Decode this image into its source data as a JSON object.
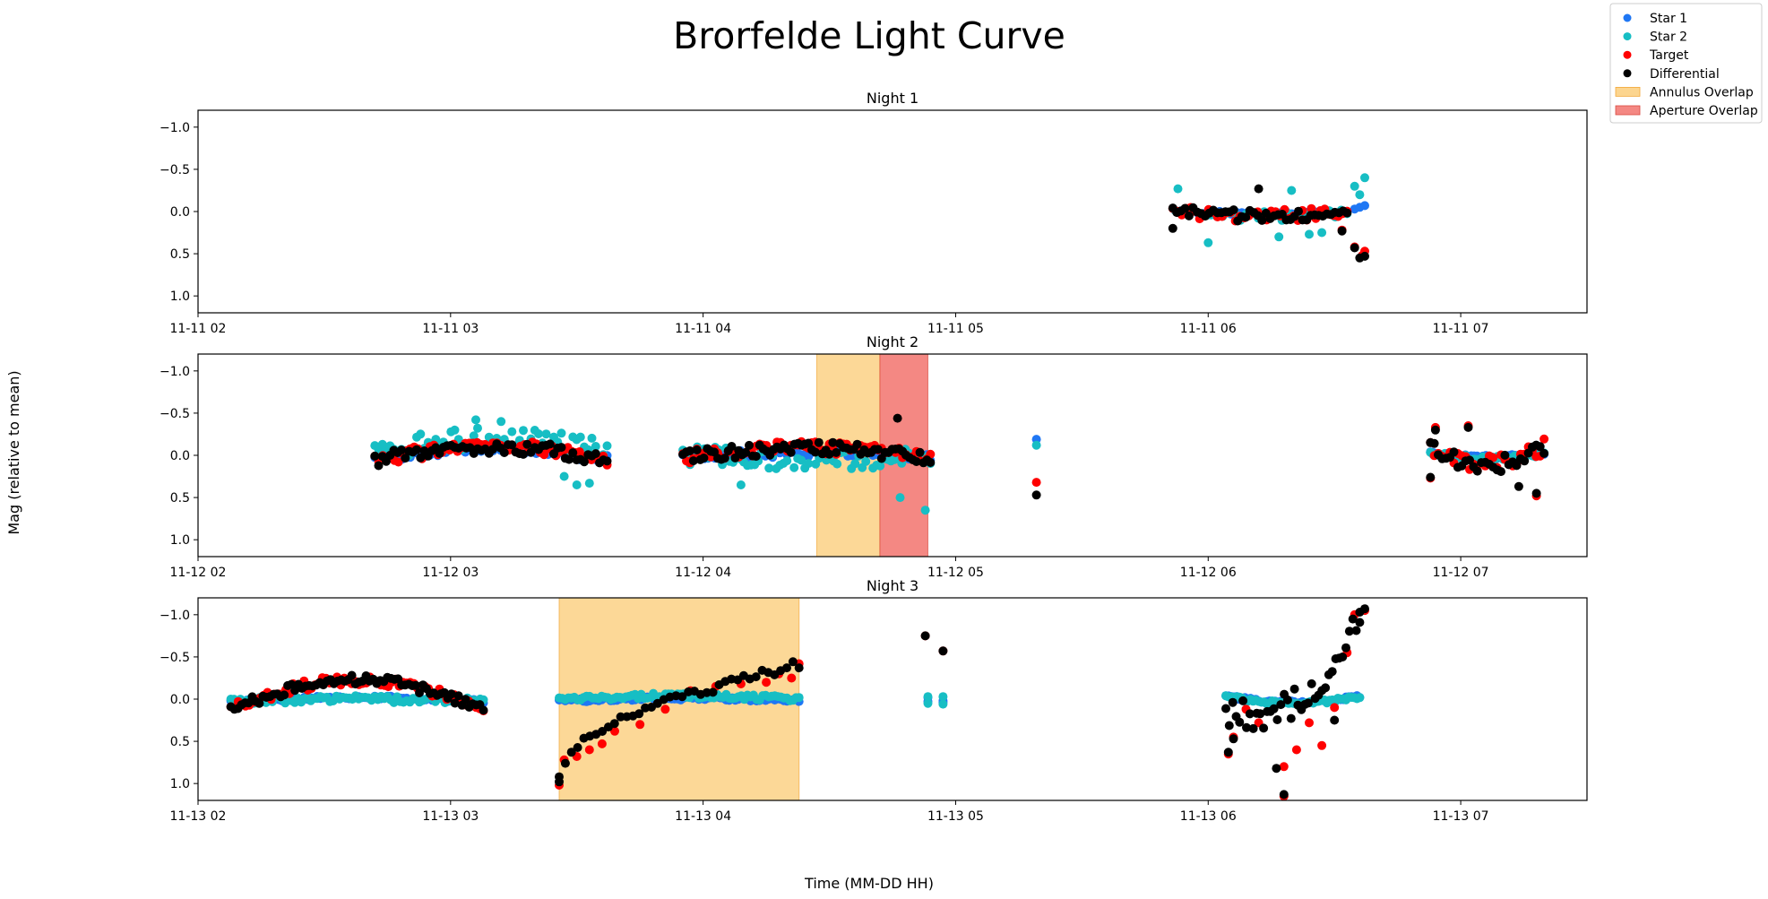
{
  "figure": {
    "title": "Brorfelde Light Curve",
    "xlabel": "Time (MM-DD HH)",
    "ylabel": "Mag (relative to mean)"
  },
  "colors": {
    "star1": "#1f77f4",
    "star2": "#17bec4",
    "target": "#ff0000",
    "differential": "#000000",
    "annulus": "#fbc360",
    "aperture": "#f0605a"
  },
  "legend": {
    "placement": "top-right",
    "entries": [
      {
        "label": "Star 1",
        "kind": "marker",
        "color_key": "star1"
      },
      {
        "label": "Star 2",
        "kind": "marker",
        "color_key": "star2"
      },
      {
        "label": "Target",
        "kind": "marker",
        "color_key": "target"
      },
      {
        "label": "Differential",
        "kind": "marker",
        "color_key": "differential"
      },
      {
        "label": "Annulus Overlap",
        "kind": "patch",
        "color_key": "annulus"
      },
      {
        "label": "Aperture Overlap",
        "kind": "patch",
        "color_key": "aperture"
      }
    ]
  },
  "chart_data": [
    {
      "type": "scatter",
      "title": "Night 1",
      "date": "11-11",
      "xlim_hours": [
        2.0,
        7.5
      ],
      "ylim": [
        1.2,
        -1.2
      ],
      "y_inverted": true,
      "yticks": [
        1.0,
        0.5,
        0.0,
        -0.5,
        -1.0
      ],
      "ytick_labels": [
        "1.0",
        "0.5",
        "0.0",
        "−0.5",
        "−1.0"
      ],
      "xticks": [
        2,
        3,
        4,
        5,
        6,
        7
      ],
      "xtick_labels": [
        "11-11 02",
        "11-11 03",
        "11-11 04",
        "11-11 05",
        "11-11 06",
        "11-11 07"
      ],
      "annulus_overlap": [],
      "aperture_overlap": [],
      "series": [
        {
          "name": "Star 1",
          "color_key": "star1",
          "segments": [
            {
              "t0": 5.87,
              "t1": 6.55,
              "n": 32,
              "base": 0.0,
              "amp": 0.02,
              "noise": 0.02,
              "seed": 11
            }
          ],
          "points": [
            [
              6.58,
              -0.03
            ],
            [
              6.6,
              -0.05
            ],
            [
              6.62,
              -0.07
            ]
          ]
        },
        {
          "name": "Star 2",
          "color_key": "star2",
          "segments": [
            {
              "t0": 5.87,
              "t1": 6.55,
              "n": 30,
              "base": 0.02,
              "amp": 0.03,
              "noise": 0.06,
              "seed": 12
            }
          ],
          "points": [
            [
              5.88,
              -0.27
            ],
            [
              6.0,
              0.37
            ],
            [
              6.28,
              0.3
            ],
            [
              6.33,
              -0.25
            ],
            [
              6.4,
              0.27
            ],
            [
              6.45,
              0.25
            ],
            [
              6.58,
              -0.3
            ],
            [
              6.6,
              -0.2
            ],
            [
              6.62,
              -0.4
            ]
          ]
        },
        {
          "name": "Target",
          "color_key": "target",
          "segments": [
            {
              "t0": 5.86,
              "t1": 6.55,
              "n": 40,
              "base": 0.0,
              "amp": 0.05,
              "noise": 0.07,
              "seed": 13
            }
          ],
          "points": [
            [
              6.53,
              0.22
            ],
            [
              6.58,
              0.42
            ],
            [
              6.61,
              0.52
            ],
            [
              6.62,
              0.47
            ]
          ]
        },
        {
          "name": "Differential",
          "color_key": "differential",
          "segments": [
            {
              "t0": 5.86,
              "t1": 6.55,
              "n": 44,
              "base": 0.0,
              "amp": 0.06,
              "noise": 0.08,
              "seed": 14
            }
          ],
          "points": [
            [
              5.86,
              0.2
            ],
            [
              6.2,
              -0.27
            ],
            [
              6.53,
              0.23
            ],
            [
              6.58,
              0.43
            ],
            [
              6.6,
              0.55
            ],
            [
              6.62,
              0.53
            ]
          ]
        }
      ]
    },
    {
      "type": "scatter",
      "title": "Night 2",
      "date": "11-12",
      "xlim_hours": [
        2.0,
        7.5
      ],
      "ylim": [
        1.2,
        -1.2
      ],
      "y_inverted": true,
      "yticks": [
        1.0,
        0.5,
        0.0,
        -0.5,
        -1.0
      ],
      "ytick_labels": [
        "1.0",
        "0.5",
        "0.0",
        "−0.5",
        "−1.0"
      ],
      "xticks": [
        2,
        3,
        4,
        5,
        6,
        7
      ],
      "xtick_labels": [
        "11-12 02",
        "11-12 03",
        "11-12 04",
        "11-12 05",
        "11-12 06",
        "11-12 07"
      ],
      "annulus_overlap": [
        [
          4.45,
          4.7
        ]
      ],
      "aperture_overlap": [
        [
          4.7,
          4.89
        ]
      ],
      "series": [
        {
          "name": "Star 1",
          "color_key": "star1",
          "segments": [
            {
              "t0": 2.7,
              "t1": 3.62,
              "n": 60,
              "base": 0.05,
              "amp": -0.12,
              "noise": 0.05,
              "seed": 21
            },
            {
              "t0": 3.92,
              "t1": 4.9,
              "n": 70,
              "base": 0.02,
              "amp": -0.05,
              "noise": 0.05,
              "seed": 22
            },
            {
              "t0": 6.88,
              "t1": 7.33,
              "n": 40,
              "base": -0.03,
              "amp": 0.05,
              "noise": 0.02,
              "seed": 23
            }
          ],
          "points": [
            [
              5.32,
              -0.19
            ]
          ]
        },
        {
          "name": "Star 2",
          "color_key": "star2",
          "segments": [
            {
              "t0": 2.7,
              "t1": 3.62,
              "n": 62,
              "base": -0.05,
              "amp": -0.15,
              "noise": 0.13,
              "seed": 24
            },
            {
              "t0": 3.92,
              "t1": 4.9,
              "n": 70,
              "base": 0.0,
              "amp": 0.05,
              "noise": 0.12,
              "seed": 25
            },
            {
              "t0": 6.88,
              "t1": 7.33,
              "n": 40,
              "base": -0.02,
              "amp": 0.06,
              "noise": 0.03,
              "seed": 26
            }
          ],
          "points": [
            [
              3.45,
              0.25
            ],
            [
              3.5,
              0.35
            ],
            [
              3.55,
              0.33
            ],
            [
              4.15,
              0.35
            ],
            [
              4.78,
              0.5
            ],
            [
              4.88,
              0.65
            ],
            [
              5.32,
              -0.12
            ],
            [
              3.1,
              -0.42
            ],
            [
              3.2,
              -0.4
            ]
          ]
        },
        {
          "name": "Target",
          "color_key": "target",
          "segments": [
            {
              "t0": 2.7,
              "t1": 3.62,
              "n": 60,
              "base": 0.05,
              "amp": -0.15,
              "noise": 0.08,
              "seed": 27
            },
            {
              "t0": 3.92,
              "t1": 4.9,
              "n": 72,
              "base": 0.02,
              "amp": -0.12,
              "noise": 0.08,
              "seed": 28
            },
            {
              "t0": 6.88,
              "t1": 7.33,
              "n": 30,
              "base": -0.1,
              "amp": 0.2,
              "noise": 0.1,
              "seed": 29
            }
          ],
          "points": [
            [
              5.32,
              0.32
            ],
            [
              6.88,
              0.27
            ],
            [
              6.9,
              -0.33
            ],
            [
              7.03,
              -0.35
            ],
            [
              7.3,
              0.48
            ]
          ]
        },
        {
          "name": "Differential",
          "color_key": "differential",
          "segments": [
            {
              "t0": 2.7,
              "t1": 3.62,
              "n": 62,
              "base": 0.05,
              "amp": -0.15,
              "noise": 0.08,
              "seed": 30
            },
            {
              "t0": 3.92,
              "t1": 4.9,
              "n": 72,
              "base": 0.03,
              "amp": -0.12,
              "noise": 0.08,
              "seed": 31
            },
            {
              "t0": 6.88,
              "t1": 7.33,
              "n": 30,
              "base": -0.1,
              "amp": 0.22,
              "noise": 0.1,
              "seed": 32
            }
          ],
          "points": [
            [
              5.32,
              0.47
            ],
            [
              4.77,
              -0.44
            ],
            [
              6.88,
              0.26
            ],
            [
              6.9,
              -0.3
            ],
            [
              7.03,
              -0.33
            ],
            [
              7.23,
              0.37
            ],
            [
              7.3,
              0.45
            ]
          ]
        }
      ]
    },
    {
      "type": "scatter",
      "title": "Night 3",
      "date": "11-13",
      "xlim_hours": [
        2.0,
        7.5
      ],
      "ylim": [
        1.2,
        -1.2
      ],
      "y_inverted": true,
      "yticks": [
        1.0,
        0.5,
        0.0,
        -0.5,
        -1.0
      ],
      "ytick_labels": [
        "1.0",
        "0.5",
        "0.0",
        "−0.5",
        "−1.0"
      ],
      "xticks": [
        2,
        3,
        4,
        5,
        6,
        7
      ],
      "xtick_labels": [
        "11-13 02",
        "11-13 03",
        "11-13 04",
        "11-13 05",
        "11-13 06",
        "11-13 07"
      ],
      "annulus_overlap": [
        [
          3.43,
          4.38
        ]
      ],
      "aperture_overlap": [],
      "series": [
        {
          "name": "Star 1",
          "color_key": "star1",
          "segments": [
            {
              "t0": 2.13,
              "t1": 3.13,
              "n": 80,
              "base": 0.03,
              "amp": -0.05,
              "noise": 0.02,
              "seed": 41
            },
            {
              "t0": 3.43,
              "t1": 4.38,
              "n": 80,
              "base": 0.02,
              "amp": -0.03,
              "noise": 0.02,
              "seed": 42
            },
            {
              "t0": 6.07,
              "t1": 6.6,
              "n": 50,
              "base": -0.03,
              "amp": 0.07,
              "noise": 0.02,
              "seed": 43
            }
          ],
          "points": [
            [
              4.89,
              -0.02
            ],
            [
              4.89,
              0.03
            ],
            [
              4.95,
              0.02
            ],
            [
              4.95,
              0.04
            ]
          ]
        },
        {
          "name": "Star 2",
          "color_key": "star2",
          "segments": [
            {
              "t0": 2.13,
              "t1": 3.13,
              "n": 80,
              "base": 0.02,
              "amp": -0.02,
              "noise": 0.04,
              "seed": 44
            },
            {
              "t0": 3.43,
              "t1": 4.38,
              "n": 80,
              "base": 0.0,
              "amp": -0.04,
              "noise": 0.03,
              "seed": 45
            },
            {
              "t0": 6.07,
              "t1": 6.6,
              "n": 50,
              "base": -0.03,
              "amp": 0.08,
              "noise": 0.02,
              "seed": 46
            }
          ],
          "points": [
            [
              4.89,
              -0.03
            ],
            [
              4.95,
              -0.03
            ],
            [
              4.89,
              0.05
            ],
            [
              4.95,
              0.06
            ]
          ]
        },
        {
          "name": "Target",
          "color_key": "target",
          "segments": [
            {
              "t0": 2.13,
              "t1": 3.13,
              "n": 70,
              "base": 0.12,
              "amp": -0.35,
              "noise": 0.06,
              "seed": 47
            }
          ],
          "points": [
            [
              3.43,
              1.02
            ],
            [
              3.45,
              0.72
            ],
            [
              3.5,
              0.68
            ],
            [
              3.55,
              0.6
            ],
            [
              3.6,
              0.53
            ],
            [
              3.65,
              0.38
            ],
            [
              3.75,
              0.3
            ],
            [
              3.85,
              0.12
            ],
            [
              3.95,
              -0.1
            ],
            [
              4.05,
              -0.15
            ],
            [
              4.15,
              -0.18
            ],
            [
              4.25,
              -0.2
            ],
            [
              4.3,
              -0.3
            ],
            [
              4.35,
              -0.25
            ],
            [
              4.38,
              -0.42
            ],
            [
              4.88,
              -0.75
            ],
            [
              4.95,
              -0.57
            ],
            [
              6.08,
              0.65
            ],
            [
              6.1,
              0.45
            ],
            [
              6.15,
              0.12
            ],
            [
              6.2,
              0.28
            ],
            [
              6.3,
              0.8
            ],
            [
              6.35,
              0.6
            ],
            [
              6.4,
              0.28
            ],
            [
              6.45,
              0.55
            ],
            [
              6.5,
              0.1
            ],
            [
              6.55,
              -0.55
            ],
            [
              6.58,
              -1.0
            ],
            [
              6.62,
              -1.05
            ],
            [
              6.3,
              1.15
            ]
          ]
        },
        {
          "name": "Differential",
          "color_key": "differential",
          "segments": [
            {
              "t0": 2.13,
              "t1": 3.13,
              "n": 72,
              "base": 0.12,
              "amp": -0.35,
              "noise": 0.06,
              "seed": 48
            },
            {
              "t0": 3.43,
              "t1": 4.38,
              "n": 40,
              "base": 0.95,
              "amp": -1.35,
              "noise": 0.06,
              "curve": "sqrt",
              "seed": 49
            },
            {
              "t0": 6.07,
              "t1": 6.6,
              "n": 40,
              "base": 0.2,
              "amp": -1.25,
              "noise": 0.18,
              "curve": "late",
              "seed": 50
            }
          ],
          "points": [
            [
              3.43,
              0.98
            ],
            [
              4.88,
              -0.75
            ],
            [
              4.95,
              -0.57
            ],
            [
              6.08,
              0.63
            ],
            [
              6.1,
              0.47
            ],
            [
              6.27,
              0.82
            ],
            [
              6.3,
              1.13
            ],
            [
              6.6,
              -1.03
            ],
            [
              6.62,
              -1.07
            ],
            [
              6.5,
              0.25
            ]
          ]
        }
      ]
    }
  ]
}
